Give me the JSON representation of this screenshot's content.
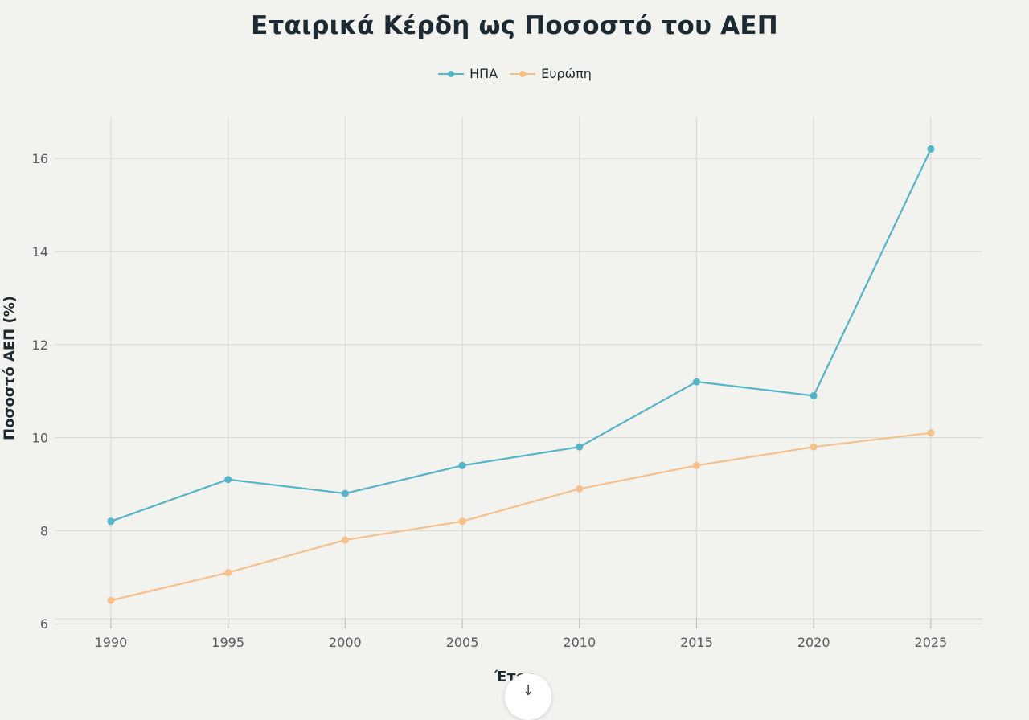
{
  "chart_data": {
    "type": "line",
    "title": "Εταιρικά Κέρδη ως Ποσοστό του ΑΕΠ",
    "xlabel": "Έτος",
    "ylabel": "Ποσοστό ΑΕΠ (%)",
    "x": [
      1990,
      1995,
      2000,
      2005,
      2010,
      2015,
      2020,
      2025
    ],
    "x_ticks": [
      "1990",
      "1995",
      "2000",
      "2005",
      "2010",
      "2015",
      "2020",
      "2025"
    ],
    "y_ticks": [
      "6",
      "8",
      "10",
      "12",
      "14",
      "16"
    ],
    "ylim": [
      5.9,
      16.9
    ],
    "xlim": [
      1987.6,
      2027.2
    ],
    "grid": true,
    "legend_position": "top-center",
    "series": [
      {
        "name": "ΗΠΑ",
        "color": "#56b4c8",
        "values": [
          8.2,
          9.1,
          8.8,
          9.4,
          9.8,
          11.2,
          10.9,
          16.2
        ]
      },
      {
        "name": "Ευρώπη",
        "color": "#f5c08c",
        "values": [
          6.5,
          7.1,
          7.8,
          8.2,
          8.9,
          9.4,
          9.8,
          10.1
        ]
      }
    ]
  },
  "ui": {
    "scroll_glyph": "↓"
  }
}
